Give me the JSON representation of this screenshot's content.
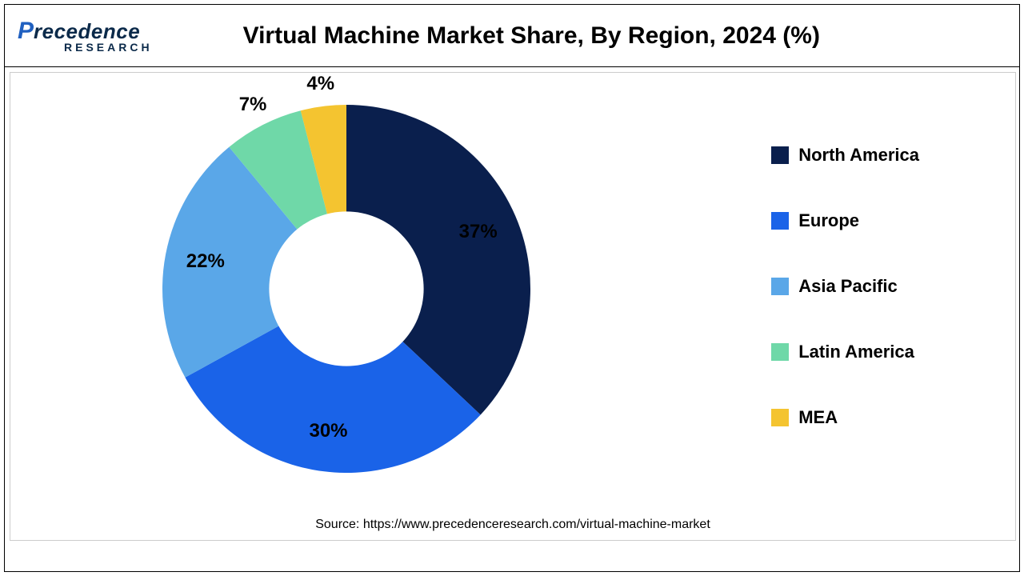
{
  "logo": {
    "brand_main": "recedence",
    "brand_p": "P",
    "brand_sub": "RESEARCH"
  },
  "title": "Virtual Machine Market Share, By Region, 2024 (%)",
  "chart": {
    "type": "donut",
    "start_angle_deg": 0,
    "inner_radius_ratio": 0.42,
    "outer_radius": 230,
    "slice_gap_deg": 0,
    "background_color": "#ffffff",
    "slices": [
      {
        "label": "North America",
        "value": 37,
        "color": "#0a1f4d",
        "text_color": "#000000"
      },
      {
        "label": "Europe",
        "value": 30,
        "color": "#1a63e8",
        "text_color": "#000000"
      },
      {
        "label": "Asia Pacific",
        "value": 22,
        "color": "#5aa7e8",
        "text_color": "#000000"
      },
      {
        "label": "Latin America",
        "value": 7,
        "color": "#6fd8a8",
        "text_color": "#000000"
      },
      {
        "label": "MEA",
        "value": 4,
        "color": "#f4c430",
        "text_color": "#000000"
      }
    ],
    "label_fontsize": 24,
    "label_fontweight": "bold",
    "label_radius_ratio": 0.78,
    "label_radius_ratio_small": 1.12
  },
  "legend": {
    "position": "right",
    "fontsize": 22,
    "fontweight": "bold",
    "swatch_size": 22,
    "item_gap": 56
  },
  "source": "Source: https://www.precedenceresearch.com/virtual-machine-market",
  "frame": {
    "outer_border_color": "#000000",
    "inner_border_color": "#cccccc"
  }
}
